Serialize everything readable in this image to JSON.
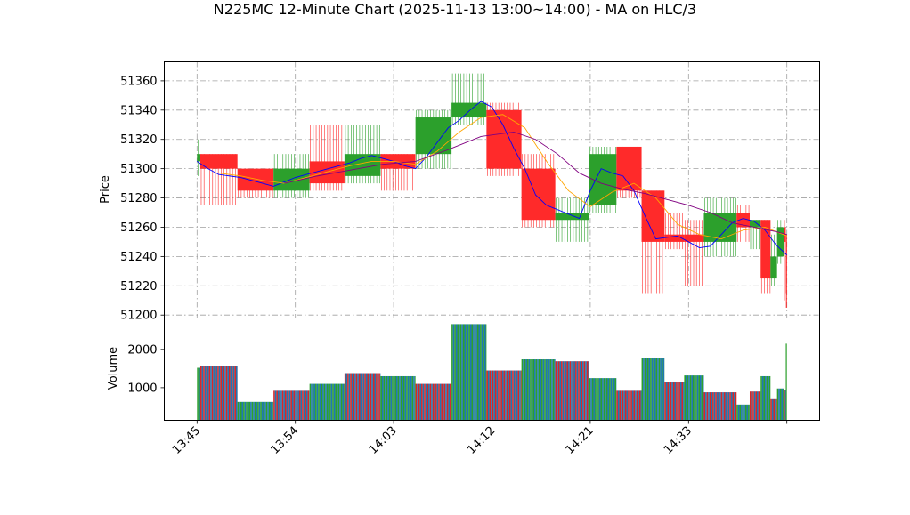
{
  "chart_data": {
    "type": "candlestick",
    "title": "N225MC 12-Minute Chart (2025-11-13 13:00~14:00) - MA on HLC/3",
    "price_panel": {
      "ylabel": "Price",
      "ylim": [
        51198,
        51373
      ],
      "yticks": [
        51200,
        51220,
        51240,
        51260,
        51280,
        51300,
        51320,
        51340,
        51360
      ],
      "grid": true
    },
    "volume_panel": {
      "ylabel": "Volume",
      "ylim": [
        150,
        2820
      ],
      "yticks": [
        1000,
        2000
      ]
    },
    "x_tick_labels": [
      "13:45",
      "13:54",
      "14:03",
      "14:12",
      "14:21",
      "14:33",
      ""
    ],
    "x_tick_positions": [
      0,
      9,
      18,
      27,
      36,
      45,
      54
    ],
    "xlim": [
      -3,
      57
    ],
    "colors": {
      "up": "#2ca02c",
      "down": "#ff2a2a",
      "ma_fast": "#0000ff",
      "ma_mid": "#ffa500",
      "ma_slow": "#800080",
      "vol_a": "#1f77b4",
      "vol_b": "#d62728",
      "vol_c": "#2ca02c"
    },
    "candles": [
      {
        "x0": 0.0,
        "x1": 0.3,
        "open": 51305,
        "high": 51320,
        "low": 51295,
        "close": 51310,
        "volume": 1520
      },
      {
        "x0": 0.3,
        "x1": 3.7,
        "open": 51310,
        "high": 51310,
        "low": 51275,
        "close": 51300,
        "volume": 1560
      },
      {
        "x0": 3.7,
        "x1": 7.0,
        "open": 51300,
        "high": 51300,
        "low": 51280,
        "close": 51285,
        "volume": 630
      },
      {
        "x0": 7.0,
        "x1": 10.3,
        "open": 51285,
        "high": 51310,
        "low": 51280,
        "close": 51300,
        "volume": 920
      },
      {
        "x0": 10.3,
        "x1": 13.5,
        "open": 51305,
        "high": 51330,
        "low": 51285,
        "close": 51290,
        "volume": 1100
      },
      {
        "x0": 13.5,
        "x1": 16.8,
        "open": 51295,
        "high": 51330,
        "low": 51290,
        "close": 51310,
        "volume": 1380
      },
      {
        "x0": 16.8,
        "x1": 20.0,
        "open": 51310,
        "high": 51310,
        "low": 51285,
        "close": 51300,
        "volume": 1300
      },
      {
        "x0": 20.0,
        "x1": 23.3,
        "open": 51310,
        "high": 51340,
        "low": 51300,
        "close": 51335,
        "volume": 1100
      },
      {
        "x0": 23.3,
        "x1": 26.5,
        "open": 51335,
        "high": 51365,
        "low": 51330,
        "close": 51345,
        "volume": 2660
      },
      {
        "x0": 26.5,
        "x1": 29.7,
        "open": 51340,
        "high": 51345,
        "low": 51295,
        "close": 51300,
        "volume": 1450
      },
      {
        "x0": 29.7,
        "x1": 32.8,
        "open": 51300,
        "high": 51310,
        "low": 51260,
        "close": 51265,
        "volume": 1740
      },
      {
        "x0": 32.8,
        "x1": 35.9,
        "open": 51265,
        "high": 51280,
        "low": 51250,
        "close": 51270,
        "volume": 1690
      },
      {
        "x0": 35.9,
        "x1": 38.4,
        "open": 51275,
        "high": 51315,
        "low": 51270,
        "close": 51310,
        "volume": 1250
      },
      {
        "x0": 38.4,
        "x1": 40.7,
        "open": 51315,
        "high": 51315,
        "low": 51280,
        "close": 51285,
        "volume": 920
      },
      {
        "x0": 40.7,
        "x1": 42.8,
        "open": 51285,
        "high": 51285,
        "low": 51215,
        "close": 51250,
        "volume": 1770
      },
      {
        "x0": 42.8,
        "x1": 44.6,
        "open": 51255,
        "high": 51270,
        "low": 51245,
        "close": 51250,
        "volume": 1150
      },
      {
        "x0": 44.6,
        "x1": 46.4,
        "open": 51255,
        "high": 51265,
        "low": 51220,
        "close": 51250,
        "volume": 1320
      },
      {
        "x0": 46.4,
        "x1": 49.4,
        "open": 51250,
        "high": 51280,
        "low": 51240,
        "close": 51270,
        "volume": 880
      },
      {
        "x0": 49.4,
        "x1": 50.6,
        "open": 51270,
        "high": 51275,
        "low": 51250,
        "close": 51260,
        "volume": 560
      },
      {
        "x0": 50.6,
        "x1": 51.6,
        "open": 51260,
        "high": 51265,
        "low": 51245,
        "close": 51265,
        "volume": 900
      },
      {
        "x0": 51.6,
        "x1": 52.5,
        "open": 51265,
        "high": 51265,
        "low": 51215,
        "close": 51225,
        "volume": 1300
      },
      {
        "x0": 52.5,
        "x1": 53.1,
        "open": 51225,
        "high": 51255,
        "low": 51220,
        "close": 51240,
        "volume": 700
      },
      {
        "x0": 53.1,
        "x1": 53.7,
        "open": 51240,
        "high": 51265,
        "low": 51235,
        "close": 51260,
        "volume": 980
      },
      {
        "x0": 53.7,
        "x1": 53.9,
        "open": 51260,
        "high": 51265,
        "low": 51210,
        "close": 51250,
        "volume": 950
      },
      {
        "x0": 53.9,
        "x1": 54.0,
        "open": 51250,
        "high": 51255,
        "low": 51205,
        "close": 51215,
        "volume": 2150
      }
    ],
    "ma_series": [
      {
        "color": "#0000ff",
        "points": [
          [
            0,
            51305
          ],
          [
            1,
            51300
          ],
          [
            2,
            51296
          ],
          [
            3,
            51295
          ],
          [
            4,
            51294
          ],
          [
            5,
            51292
          ],
          [
            6,
            51290
          ],
          [
            7,
            51288
          ],
          [
            8,
            51291
          ],
          [
            9,
            51294
          ],
          [
            10,
            51296
          ],
          [
            11,
            51298
          ],
          [
            12,
            51300
          ],
          [
            13,
            51302
          ],
          [
            14,
            51304
          ],
          [
            15,
            51307
          ],
          [
            16,
            51309
          ],
          [
            17,
            51307
          ],
          [
            18,
            51305
          ],
          [
            19,
            51302
          ],
          [
            20,
            51300
          ],
          [
            21,
            51308
          ],
          [
            22,
            51318
          ],
          [
            23,
            51328
          ],
          [
            24,
            51333
          ],
          [
            25,
            51340
          ],
          [
            26,
            51346
          ],
          [
            27,
            51342
          ],
          [
            28,
            51330
          ],
          [
            29,
            51314
          ],
          [
            30,
            51300
          ],
          [
            31,
            51282
          ],
          [
            32,
            51275
          ],
          [
            33,
            51272
          ],
          [
            34,
            51269
          ],
          [
            35,
            51266
          ],
          [
            36,
            51285
          ],
          [
            37,
            51300
          ],
          [
            38,
            51297
          ],
          [
            39,
            51295
          ],
          [
            40,
            51285
          ],
          [
            41,
            51268
          ],
          [
            42,
            51252
          ],
          [
            43,
            51253
          ],
          [
            44,
            51254
          ],
          [
            45,
            51250
          ],
          [
            46,
            51246
          ],
          [
            47,
            51247
          ],
          [
            48,
            51255
          ],
          [
            49,
            51263
          ],
          [
            50,
            51266
          ],
          [
            51,
            51264
          ],
          [
            52,
            51258
          ],
          [
            53,
            51248
          ],
          [
            54,
            51241
          ]
        ]
      },
      {
        "color": "#ffa500",
        "points": [
          [
            2,
            51297
          ],
          [
            4,
            51295
          ],
          [
            6,
            51292
          ],
          [
            8,
            51290
          ],
          [
            10,
            51294
          ],
          [
            12,
            51298
          ],
          [
            14,
            51302
          ],
          [
            16,
            51305
          ],
          [
            18,
            51305
          ],
          [
            20,
            51303
          ],
          [
            22,
            51312
          ],
          [
            24,
            51325
          ],
          [
            26,
            51335
          ],
          [
            28,
            51337
          ],
          [
            30,
            51328
          ],
          [
            32,
            51305
          ],
          [
            34,
            51285
          ],
          [
            36,
            51274
          ],
          [
            38,
            51284
          ],
          [
            40,
            51290
          ],
          [
            42,
            51280
          ],
          [
            44,
            51262
          ],
          [
            46,
            51255
          ],
          [
            48,
            51252
          ],
          [
            50,
            51258
          ],
          [
            52,
            51260
          ],
          [
            54,
            51254
          ]
        ]
      },
      {
        "color": "#800080",
        "points": [
          [
            8,
            51290
          ],
          [
            11,
            51295
          ],
          [
            14,
            51299
          ],
          [
            17,
            51303
          ],
          [
            20,
            51305
          ],
          [
            23,
            51313
          ],
          [
            26,
            51322
          ],
          [
            29,
            51325
          ],
          [
            31,
            51320
          ],
          [
            33,
            51310
          ],
          [
            35,
            51297
          ],
          [
            37,
            51290
          ],
          [
            39,
            51286
          ],
          [
            41,
            51283
          ],
          [
            43,
            51279
          ],
          [
            45,
            51275
          ],
          [
            47,
            51270
          ],
          [
            49,
            51263
          ],
          [
            51,
            51260
          ],
          [
            53,
            51257
          ],
          [
            54,
            51255
          ]
        ]
      }
    ]
  }
}
